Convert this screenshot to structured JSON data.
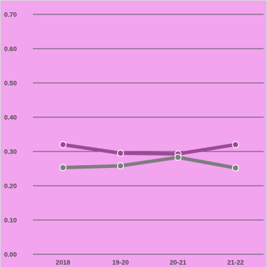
{
  "chart_data": {
    "type": "line",
    "title": "",
    "xlabel": "",
    "ylabel": "",
    "categories": [
      "2018",
      "19-20",
      "20-21",
      "21-22"
    ],
    "ylim": [
      0,
      0.7
    ],
    "yticks": [
      "0.00",
      "0.10",
      "0.20",
      "0.30",
      "0.40",
      "0.50",
      "0.60",
      "0.70"
    ],
    "grid": true,
    "legend": "none",
    "series": [
      {
        "values": [
          0.32,
          0.295,
          0.293,
          0.32
        ],
        "color": "#9b4a94"
      },
      {
        "values": [
          0.253,
          0.258,
          0.283,
          0.252
        ],
        "color": "#7d7d7d"
      }
    ],
    "colors": {
      "background": "#f2a4ef",
      "grid": "#555555",
      "marker_fill": "#c8c8c8",
      "marker_stroke": "#ffffff"
    }
  }
}
